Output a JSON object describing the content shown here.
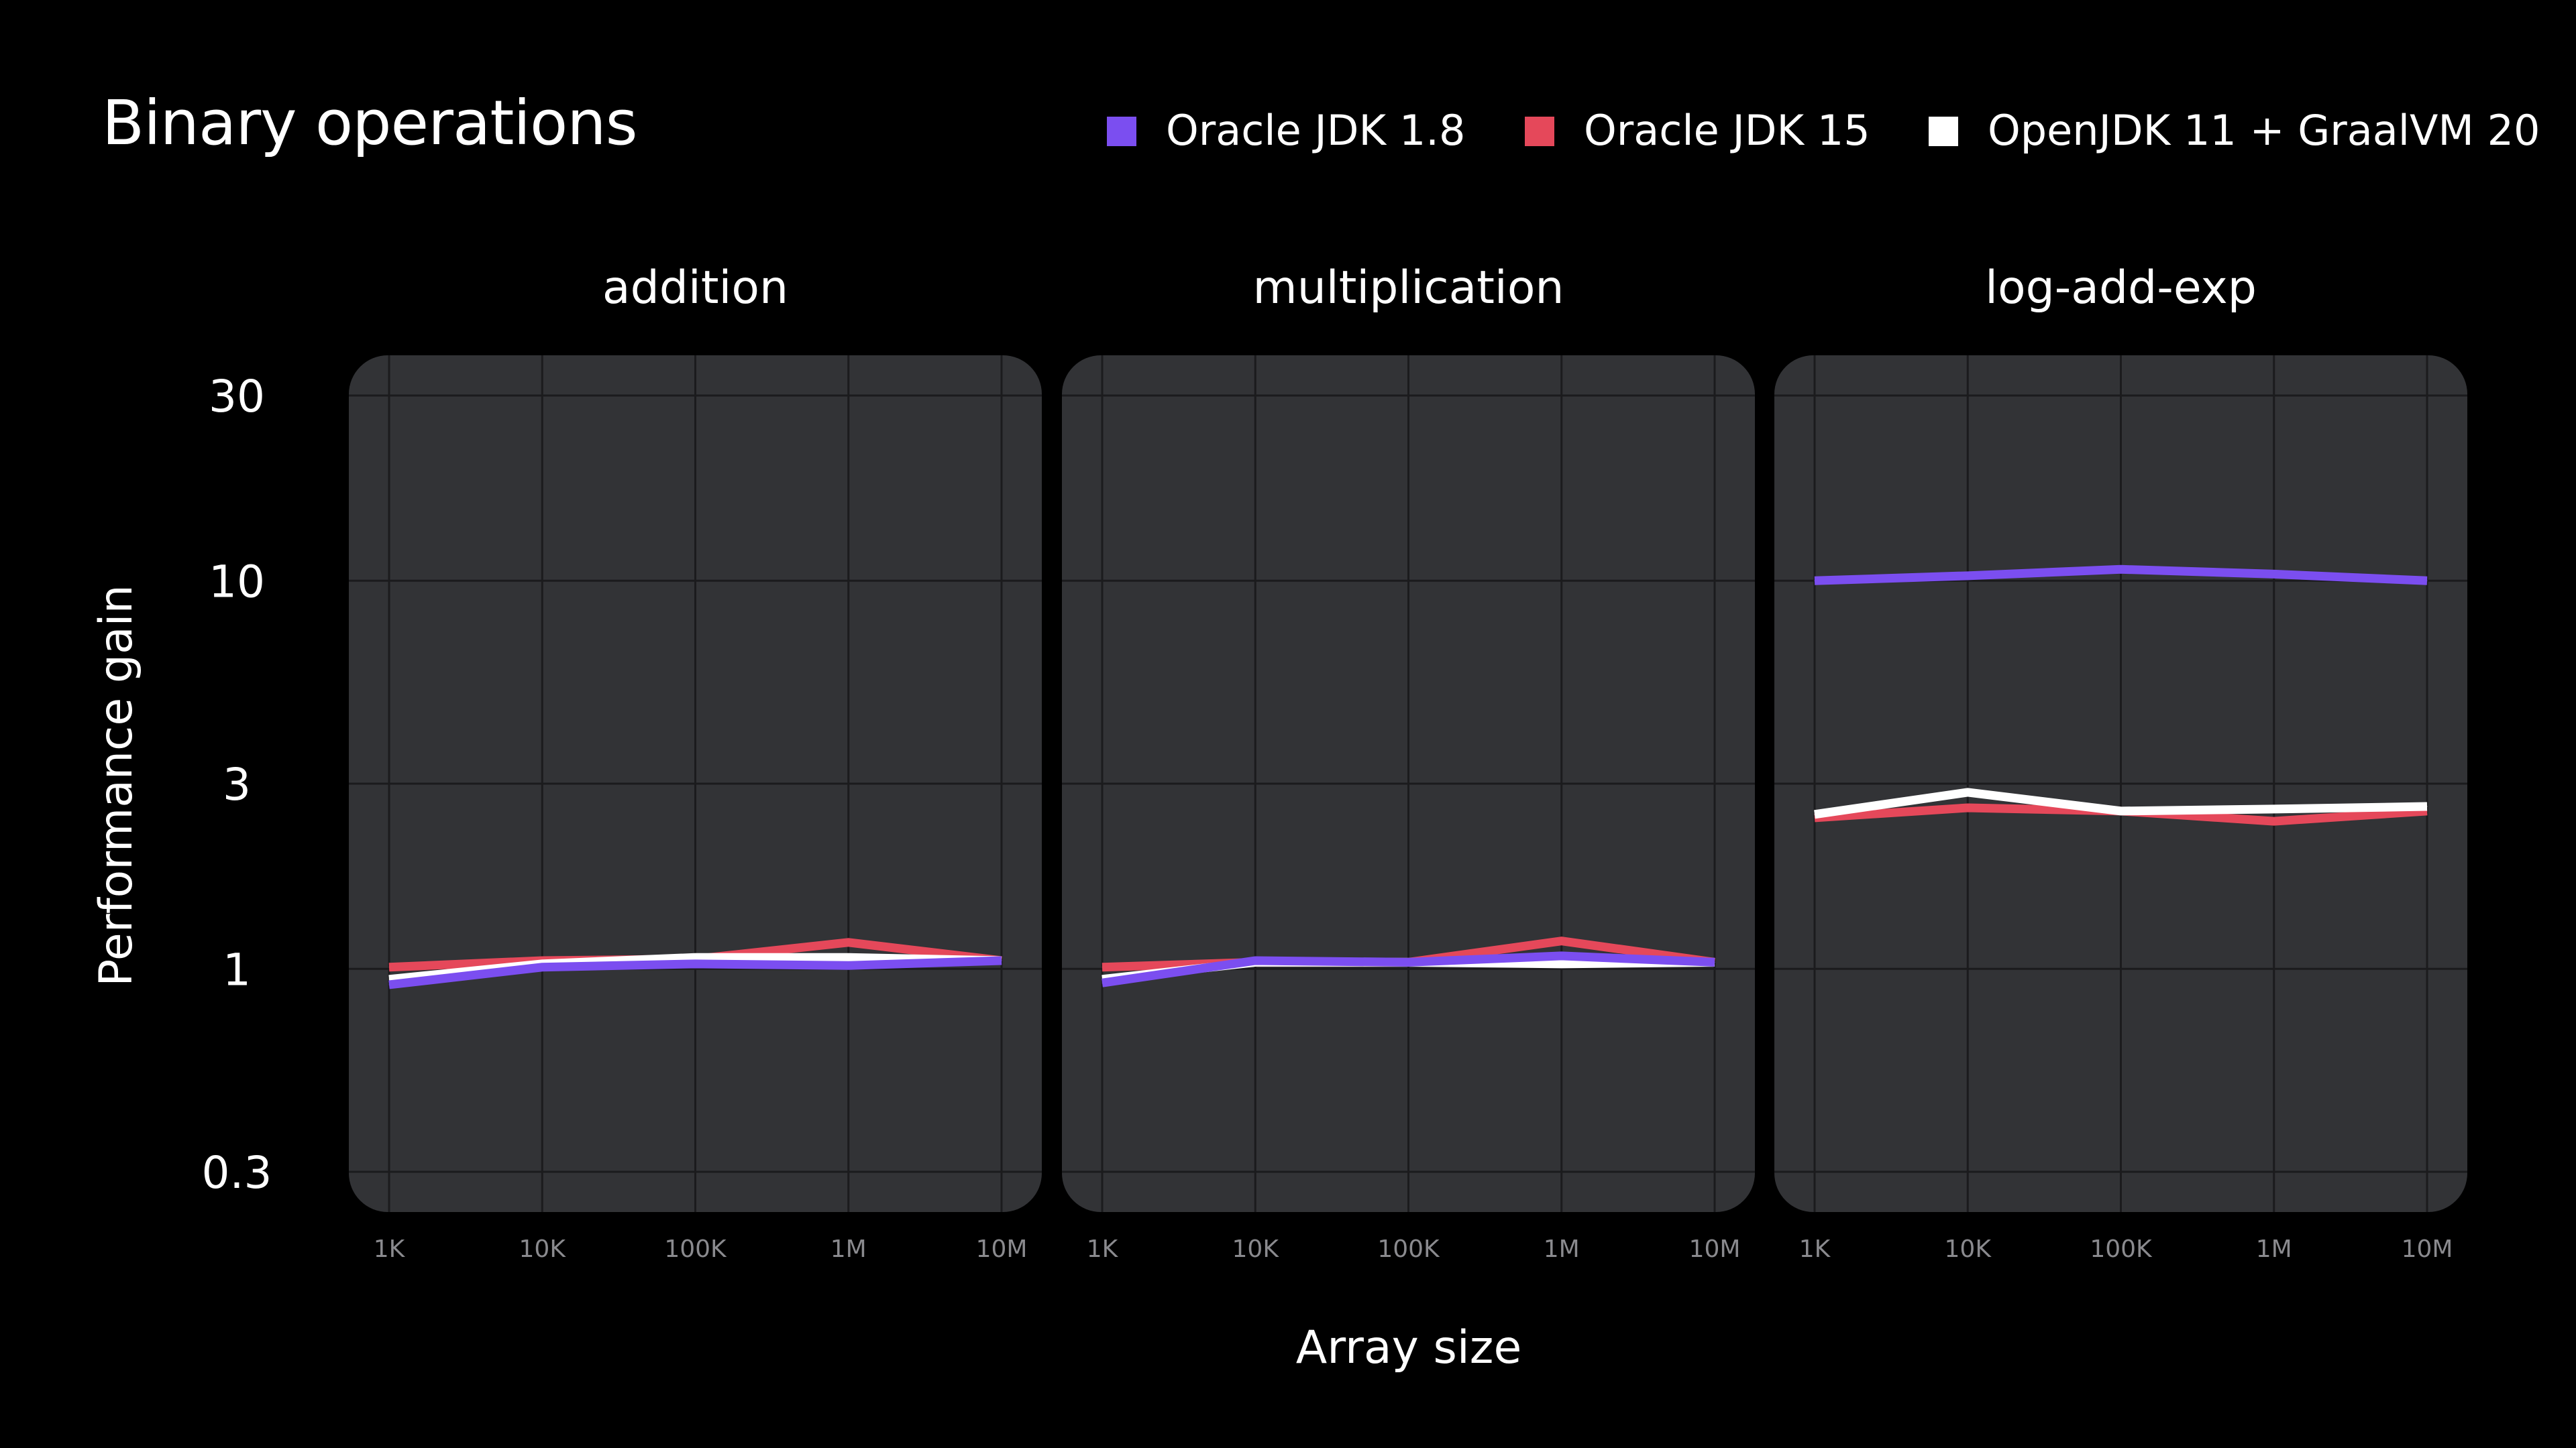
{
  "chart_data": {
    "type": "line",
    "title": "Binary operations",
    "xlabel": "Array size",
    "ylabel": "Performance gain",
    "yscale": "log",
    "ylim": [
      0.25,
      36
    ],
    "yticks": [
      0.3,
      1,
      3,
      10,
      30
    ],
    "ytick_labels": [
      "0.3",
      "1",
      "3",
      "10",
      "30"
    ],
    "categories": [
      "1K",
      "10K",
      "100K",
      "1M",
      "10M"
    ],
    "legend_position": "top-right",
    "grid": true,
    "series_legend": [
      {
        "name": "Oracle JDK 1.8",
        "color": "#7b4ef0"
      },
      {
        "name": "Oracle JDK 15",
        "color": "#e5485a"
      },
      {
        "name": "OpenJDK 11 + GraalVM 20",
        "color": "#ffffff"
      }
    ],
    "panels": [
      {
        "title": "addition",
        "series": [
          {
            "name": "Oracle JDK 15",
            "color": "#e5485a",
            "values": [
              1.01,
              1.05,
              1.06,
              1.17,
              1.05
            ]
          },
          {
            "name": "OpenJDK 11 + GraalVM 20",
            "color": "#ffffff",
            "values": [
              0.94,
              1.03,
              1.07,
              1.07,
              1.05
            ]
          },
          {
            "name": "Oracle JDK 1.8",
            "color": "#7b4ef0",
            "values": [
              0.91,
              1.01,
              1.03,
              1.02,
              1.05
            ]
          }
        ]
      },
      {
        "title": "multiplication",
        "series": [
          {
            "name": "Oracle JDK 15",
            "color": "#e5485a",
            "values": [
              1.01,
              1.04,
              1.04,
              1.18,
              1.04
            ]
          },
          {
            "name": "OpenJDK 11 + GraalVM 20",
            "color": "#ffffff",
            "values": [
              0.94,
              1.04,
              1.04,
              1.03,
              1.04
            ]
          },
          {
            "name": "Oracle JDK 1.8",
            "color": "#7b4ef0",
            "values": [
              0.92,
              1.05,
              1.04,
              1.08,
              1.04
            ]
          }
        ]
      },
      {
        "title": "log-add-exp",
        "series": [
          {
            "name": "Oracle JDK 1.8",
            "color": "#7b4ef0",
            "values": [
              10.0,
              10.3,
              10.7,
              10.4,
              10.0
            ]
          },
          {
            "name": "Oracle JDK 15",
            "color": "#e5485a",
            "values": [
              2.45,
              2.6,
              2.55,
              2.4,
              2.55
            ]
          },
          {
            "name": "OpenJDK 11 + GraalVM 20",
            "color": "#ffffff",
            "values": [
              2.5,
              2.85,
              2.55,
              2.58,
              2.62
            ]
          }
        ]
      }
    ]
  }
}
